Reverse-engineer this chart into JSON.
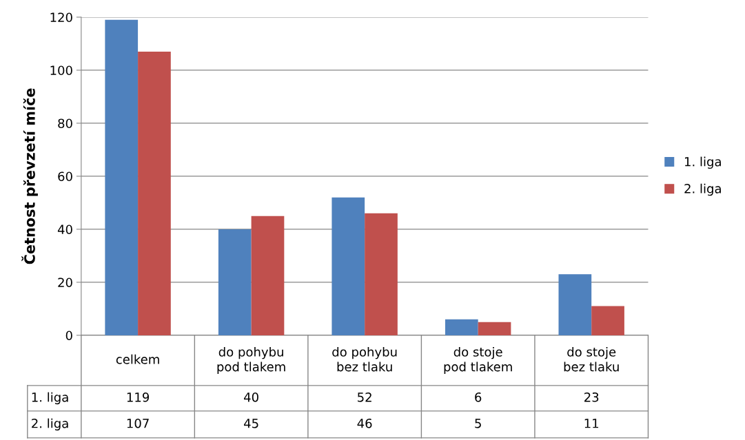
{
  "chart_data": {
    "type": "bar",
    "ylabel": "Četnost převzetí míče",
    "categories": [
      "celkem",
      "do pohybu pod tlakem",
      "do pohybu bez tlaku",
      "do stoje pod tlakem",
      "do stoje bez tlaku"
    ],
    "series": [
      {
        "name": "1. liga",
        "color": "#4f81bd",
        "values": [
          119,
          40,
          52,
          6,
          23
        ]
      },
      {
        "name": "2. liga",
        "color": "#c0504d",
        "values": [
          107,
          45,
          46,
          5,
          11
        ]
      }
    ],
    "ylim": [
      0,
      120
    ],
    "yticks": [
      0,
      20,
      40,
      60,
      80,
      100,
      120
    ],
    "grid": "y",
    "legend": "right",
    "data_labels": true
  }
}
